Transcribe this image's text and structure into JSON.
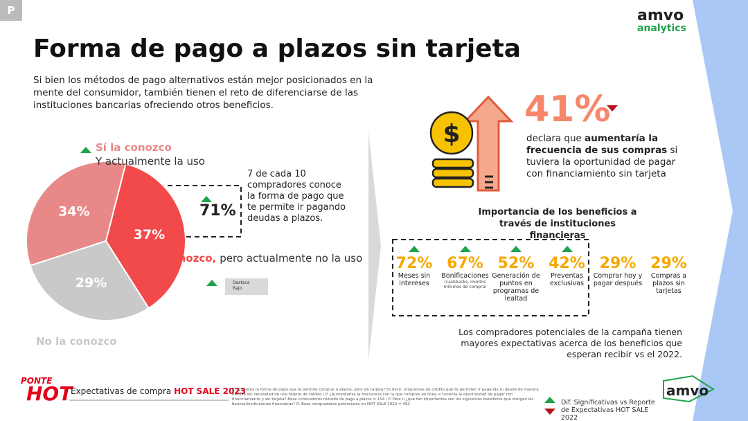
{
  "badge": "P",
  "logo": {
    "top": "amvo",
    "bottom": "analytics"
  },
  "title": "Forma de pago a plazos sin tarjeta",
  "intro": "Si bien los métodos de pago alternativos están mejor posicionados en la mente del consumidor, también tienen el reto de diferenciarse de las instituciones bancarias ofreciendo otros beneficios.",
  "chart_data": {
    "type": "pie",
    "labels": [
      {
        "strong": "Sí la conozco",
        "text": "Y actualmente la uso"
      },
      {
        "strong": "Sí la conozco,",
        "text": "pero actualmente no la uso"
      },
      {
        "strong": "No la conozco"
      }
    ],
    "values": [
      34,
      37,
      29
    ],
    "value_labels": [
      "34%",
      "37%",
      "29%"
    ],
    "colors": [
      "#e88888",
      "#f24a4a",
      "#c9c9c9"
    ],
    "start_angle": 252
  },
  "highlight": {
    "value": "71%",
    "text": "7 de cada 10 compradores conoce la forma de pago que te permite ir pagando deudas a plazos."
  },
  "legend_box": {
    "line1": "Destaca",
    "line2": "Bajo"
  },
  "stat": {
    "value": "41%",
    "before": "declara que ",
    "strong": "aumentaría la frecuencia de sus compras",
    "after": " si tuviera la oportunidad de pagar con financiamiento sin tarjeta"
  },
  "benefits_title": "Importancia de los beneficios a través de instituciones financieras",
  "benefits": [
    {
      "value": "72%",
      "label": "Meses sin intereses",
      "marker": "up"
    },
    {
      "value": "67%",
      "label": "Bonificaciones",
      "note": "(cashbacks, montos mínimos de compra)",
      "marker": "up"
    },
    {
      "value": "52%",
      "label": "Generación de puntos en programas de lealtad",
      "marker": "up"
    },
    {
      "value": "42%",
      "label": "Preventas exclusivas",
      "marker": "up"
    },
    {
      "value": "29%",
      "label": "Comprar hoy y pagar después"
    },
    {
      "value": "29%",
      "label": "Compras a plazos sin tarjetas"
    }
  ],
  "conclusion": "Los compradores potenciales de la campaña tienen mayores expectativas acerca de los beneficios que esperan recibir vs el 2022.",
  "footer": {
    "brand_top": "PONTE",
    "brand_bottom": "HOT",
    "caption": "Expectativas de compra ",
    "caption_strong": "HOT SALE 2023",
    "note": "P. ¿Conoces la forma de pago que te permite comprar a plazos, pero sin tarjeta? Es decir, programas de crédito que te permiten ir pagando tu deuda de manera flexible sin necesidad de una tarjeta de crédito / P. ¿Aumentarías la frecuencia con la que compras en línea si tuvieras la oportunidad de pagar con financiamiento y sin tarjeta? Base conocedores método de pago a plazos = 154 / P. Para ti ¿qué tan importantes son los siguientes beneficios que otorgan los bancos/instituciones financieras? R. Base compradores potenciales en HOT SALE 2023 = 492",
    "legend": "Dif. Significativas vs Reporte de Expectativas HOT SALE 2022",
    "logo": "amvo"
  }
}
